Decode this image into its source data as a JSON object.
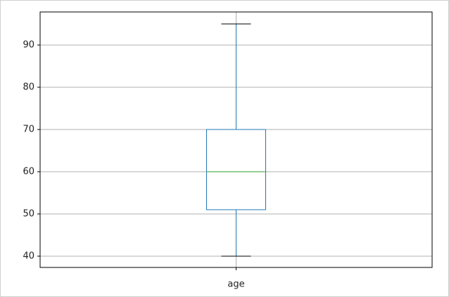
{
  "chart_data": {
    "type": "box",
    "categories": [
      "age"
    ],
    "boxes": [
      {
        "min": 40,
        "q1": 51,
        "median": 60,
        "q3": 70,
        "max": 95
      }
    ],
    "box_color": "#1f77b4",
    "median_color": "#2ca02c",
    "cap_color": "#000000",
    "ylim": [
      37.33,
      97.83
    ],
    "yticks": [
      40,
      50,
      60,
      70,
      80,
      90
    ],
    "grid": true
  }
}
